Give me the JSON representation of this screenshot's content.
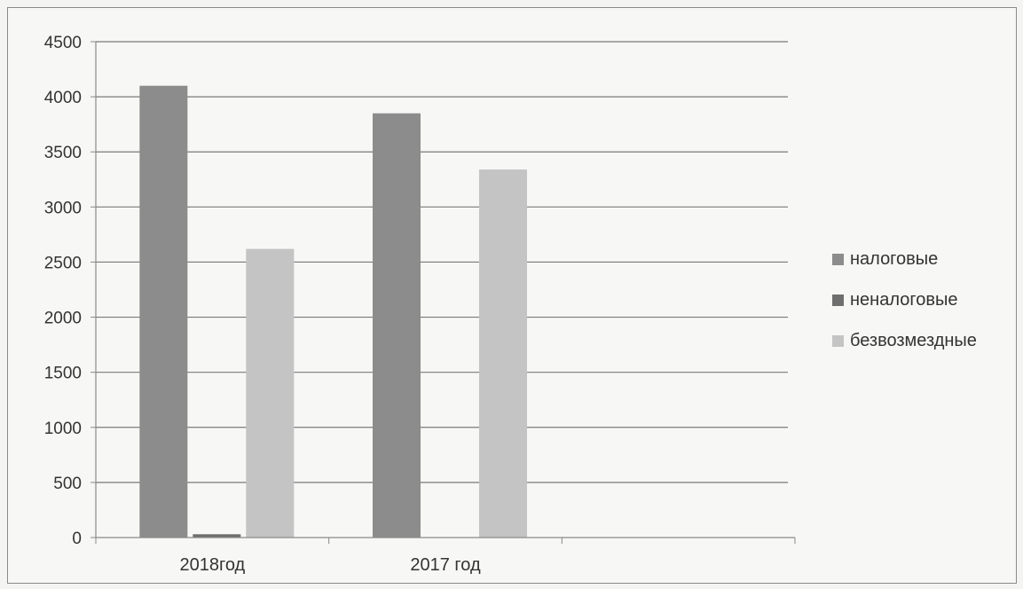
{
  "chart_data": {
    "type": "bar",
    "categories": [
      "2018год",
      "2017 год"
    ],
    "series": [
      {
        "name": "налоговые",
        "values": [
          4100,
          3850
        ],
        "color": "#8c8c8c"
      },
      {
        "name": "неналоговые",
        "values": [
          30,
          0
        ],
        "color": "#6f6f6f"
      },
      {
        "name": "безвозмездные",
        "values": [
          2620,
          3340
        ],
        "color": "#c4c4c4"
      }
    ],
    "ylim": [
      0,
      4500
    ],
    "yticks": [
      "0",
      "500",
      "1000",
      "1500",
      "2000",
      "2500",
      "3000",
      "3500",
      "4000",
      "4500"
    ],
    "grid": true,
    "legend": "right",
    "title": "",
    "xlabel": "",
    "ylabel": ""
  }
}
